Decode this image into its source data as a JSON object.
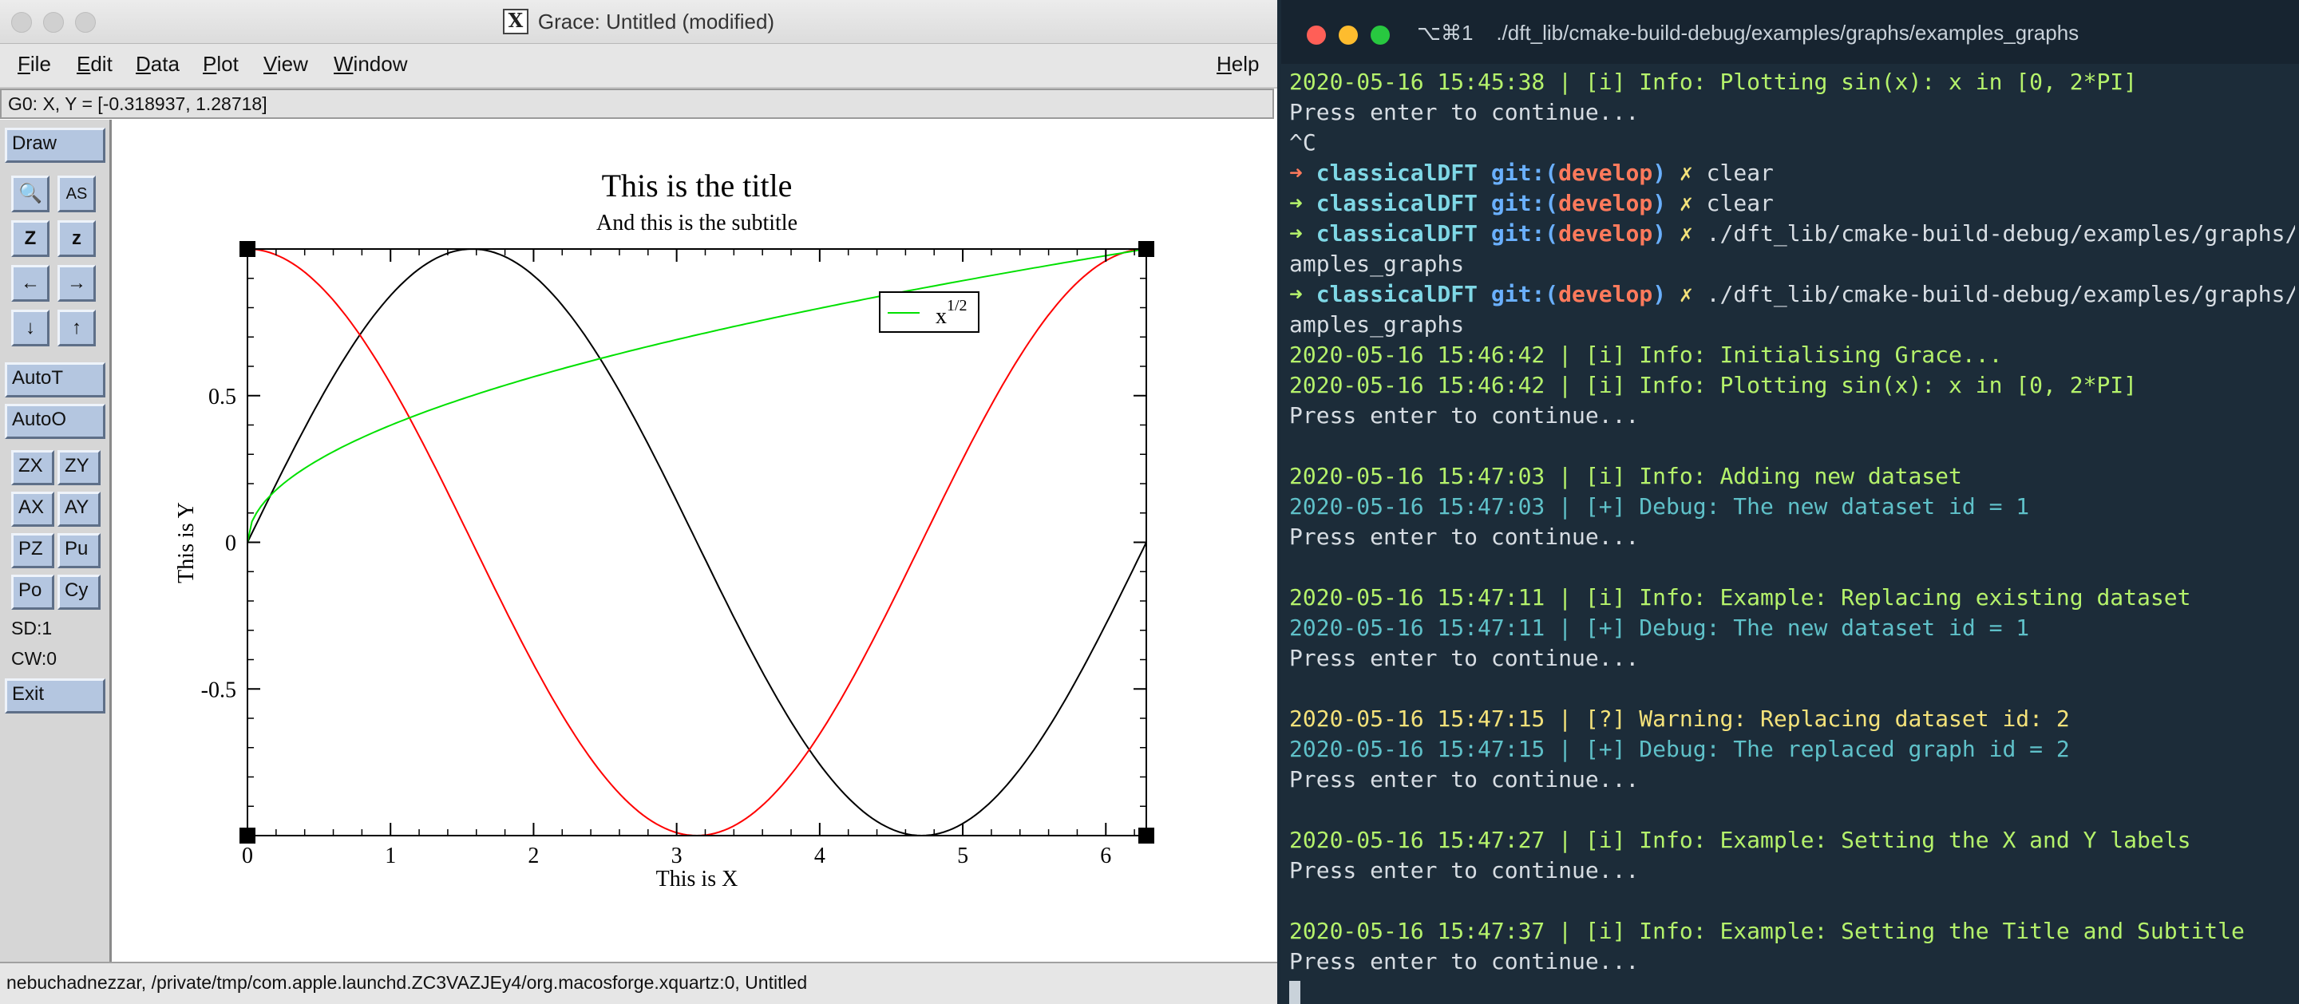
{
  "grace": {
    "window_title": "Grace: Untitled (modified)",
    "x_logo": "X",
    "menu": [
      "File",
      "Edit",
      "Data",
      "Plot",
      "View",
      "Window"
    ],
    "menu_mnemonics": [
      "F",
      "E",
      "D",
      "P",
      "V",
      "W"
    ],
    "help": "Help",
    "help_mnemonic": "H",
    "locator": "G0: X, Y = [-0.318937, 1.28718]",
    "tools": {
      "draw": "Draw",
      "autot": "AutoT",
      "autoo": "AutoO",
      "zx": "ZX",
      "zy": "ZY",
      "ax": "AX",
      "ay": "AY",
      "pz": "PZ",
      "pu": "Pu",
      "po": "Po",
      "cy": "Cy",
      "sd": "SD:1",
      "cw": "CW:0",
      "exit": "Exit",
      "icons": [
        "magnifier-icon",
        "autoscale-text-icon",
        "zoom-z-icon",
        "zoom-z-small-icon",
        "arrow-left-icon",
        "arrow-right-icon",
        "arrow-down-icon",
        "arrow-up-icon"
      ],
      "glyphs": [
        "🔍",
        "AS",
        "Z",
        "z",
        "←",
        "→",
        "↓",
        "↑"
      ]
    },
    "status": "nebuchadnezzar, /private/tmp/com.apple.launchd.ZC3VAZJEy4/org.macosforge.xquartz:0, Untitled"
  },
  "chart_data": {
    "type": "line",
    "title": "This is the title",
    "subtitle": "And this is the subtitle",
    "xlabel": "This is X",
    "ylabel": "This is Y",
    "xlim": [
      0,
      6.283
    ],
    "ylim": [
      -1,
      1
    ],
    "x_ticks": [
      0,
      1,
      2,
      3,
      4,
      5,
      6
    ],
    "y_ticks": [
      -0.5,
      0,
      0.5
    ],
    "y_tick_labels": [
      "-0.5",
      "0",
      "0.5"
    ],
    "legend": {
      "label": "x",
      "superscript": "1/2",
      "position": "top-right"
    },
    "series": [
      {
        "color": "#000000",
        "x": [
          0,
          0.785,
          1.571,
          2.356,
          3.142,
          3.927,
          4.712,
          5.498,
          6.283
        ],
        "values": [
          0,
          0.707,
          1,
          0.707,
          0,
          -0.707,
          -1,
          -0.707,
          0
        ]
      },
      {
        "color": "#ff0000",
        "x": [
          0,
          0.785,
          1.571,
          2.356,
          3.142,
          3.927,
          4.712,
          5.498,
          6.283
        ],
        "values": [
          1,
          0.707,
          0,
          -0.707,
          -1,
          -0.707,
          0,
          0.707,
          1
        ]
      },
      {
        "name": "x^1/2",
        "color": "#00e000",
        "x": [
          0,
          0.5,
          1,
          2,
          3,
          4,
          5,
          6.283
        ],
        "values": [
          0,
          0.282,
          0.399,
          0.564,
          0.691,
          0.798,
          0.892,
          1
        ]
      }
    ]
  },
  "terminal": {
    "title": "⌥⌘1    ./dft_lib/cmake-build-debug/examples/graphs/examples_graphs",
    "lines": [
      {
        "kind": "info",
        "text": "2020-05-16 15:45:38 | [i] Info: Plotting sin(x): x in [0, 2*PI]"
      },
      {
        "kind": "plain",
        "text": "Press enter to continue..."
      },
      {
        "kind": "plain",
        "text": "^C"
      },
      {
        "kind": "prompt",
        "arrow": "red",
        "dir": "classicalDFT",
        "git": "git:(",
        "branch": "develop",
        "git_end": ")",
        "x": "✗",
        "cmd": "clear"
      },
      {
        "kind": "prompt",
        "arrow": "green",
        "dir": "classicalDFT",
        "git": "git:(",
        "branch": "develop",
        "git_end": ")",
        "x": "✗",
        "cmd": "clear"
      },
      {
        "kind": "prompt",
        "arrow": "green",
        "dir": "classicalDFT",
        "git": "git:(",
        "branch": "develop",
        "git_end": ")",
        "x": "✗",
        "cmd": "./dft_lib/cmake-build-debug/examples/graphs/ex"
      },
      {
        "kind": "plain",
        "text": "amples_graphs"
      },
      {
        "kind": "prompt",
        "arrow": "green",
        "dir": "classicalDFT",
        "git": "git:(",
        "branch": "develop",
        "git_end": ")",
        "x": "✗",
        "cmd": "./dft_lib/cmake-build-debug/examples/graphs/ex"
      },
      {
        "kind": "plain",
        "text": "amples_graphs"
      },
      {
        "kind": "info",
        "text": "2020-05-16 15:46:42 | [i] Info: Initialising Grace..."
      },
      {
        "kind": "info",
        "text": "2020-05-16 15:46:42 | [i] Info: Plotting sin(x): x in [0, 2*PI]"
      },
      {
        "kind": "plain",
        "text": "Press enter to continue..."
      },
      {
        "kind": "plain",
        "text": ""
      },
      {
        "kind": "info",
        "text": "2020-05-16 15:47:03 | [i] Info: Adding new dataset"
      },
      {
        "kind": "debug",
        "text": "2020-05-16 15:47:03 | [+] Debug: The new dataset id = 1"
      },
      {
        "kind": "plain",
        "text": "Press enter to continue..."
      },
      {
        "kind": "plain",
        "text": ""
      },
      {
        "kind": "info",
        "text": "2020-05-16 15:47:11 | [i] Info: Example: Replacing existing dataset"
      },
      {
        "kind": "debug",
        "text": "2020-05-16 15:47:11 | [+] Debug: The new dataset id = 1"
      },
      {
        "kind": "plain",
        "text": "Press enter to continue..."
      },
      {
        "kind": "plain",
        "text": ""
      },
      {
        "kind": "warn",
        "text": "2020-05-16 15:47:15 | [?] Warning: Replacing dataset id: 2"
      },
      {
        "kind": "debug",
        "text": "2020-05-16 15:47:15 | [+] Debug: The replaced graph id = 2"
      },
      {
        "kind": "plain",
        "text": "Press enter to continue..."
      },
      {
        "kind": "plain",
        "text": ""
      },
      {
        "kind": "info",
        "text": "2020-05-16 15:47:27 | [i] Info: Example: Setting the X and Y labels"
      },
      {
        "kind": "plain",
        "text": "Press enter to continue..."
      },
      {
        "kind": "plain",
        "text": ""
      },
      {
        "kind": "info",
        "text": "2020-05-16 15:47:37 | [i] Info: Example: Setting the Title and Subtitle"
      },
      {
        "kind": "plain",
        "text": "Press enter to continue..."
      },
      {
        "kind": "cursor",
        "text": ""
      }
    ]
  }
}
